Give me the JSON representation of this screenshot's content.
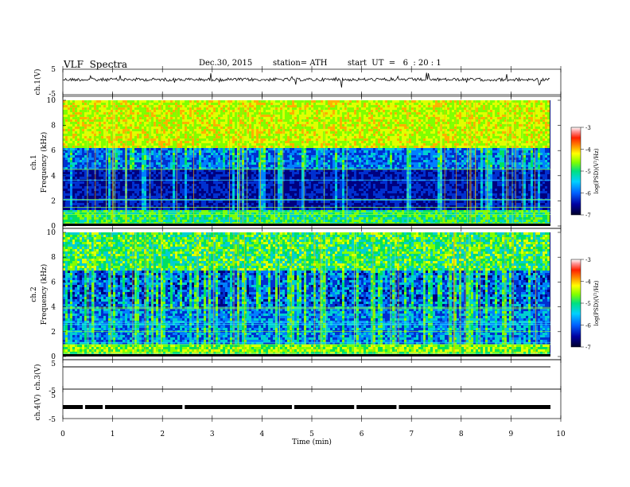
{
  "header": {
    "title": "VLF  Spectra",
    "date": "Dec.30, 2015",
    "station": "station= ATH",
    "start": "start  UT  =   6  : 20 : 1"
  },
  "colors": {
    "colormap": [
      "#00002a",
      "#000080",
      "#0030d0",
      "#0080ff",
      "#00d0d0",
      "#00e060",
      "#80ff00",
      "#e0ff00",
      "#ffb000",
      "#ff3000",
      "#ff8080",
      "#ffffff"
    ],
    "trace": "#000000"
  },
  "chart_data": [
    {
      "type": "line",
      "panel": "ch1-waveform",
      "ylabel": "ch.1(V)",
      "ylim": [
        -5,
        5
      ],
      "yticks": [
        "5",
        "-5"
      ],
      "x_range_min": [
        0,
        9.8
      ],
      "description_values": "continuous noisy waveform near 0.8 V baseline with sporadic spikes"
    },
    {
      "type": "heatmap",
      "panel": "ch1-spectrogram",
      "ylabel": "ch.1\nFrequency (kHz)",
      "ylabel_line1": "ch.1",
      "ylabel_line2": "Frequency  (kHz)",
      "ylim": [
        0,
        10
      ],
      "yticks": [
        "10",
        "8",
        "6",
        "4",
        "2",
        "0"
      ],
      "colorbar": {
        "label": "log(PSD)(V²/Hz)",
        "range": [
          -7,
          -3
        ],
        "ticks": [
          "-3",
          "-4",
          "-5",
          "-6",
          "-7"
        ]
      }
    },
    {
      "type": "heatmap",
      "panel": "ch2-spectrogram",
      "ylabel_line1": "ch.2",
      "ylabel_line2": "Frequency  (kHz)",
      "ylim": [
        0,
        10
      ],
      "yticks": [
        "10",
        "8",
        "6",
        "4",
        "2",
        "0"
      ],
      "colorbar": {
        "label": "log(PSD)(V²/Hz)",
        "range": [
          -7,
          -3
        ],
        "ticks": [
          "-3",
          "-4",
          "-5",
          "-6",
          "-7"
        ]
      }
    },
    {
      "type": "line",
      "panel": "ch3-waveform",
      "ylabel": "ch.3(V)",
      "ylim": [
        -5,
        5
      ],
      "yticks": [
        "5",
        "-5"
      ],
      "values_note": "flat trace near 0 V"
    },
    {
      "type": "line",
      "panel": "ch4-waveform",
      "ylabel": "ch.4(V)",
      "ylim": [
        -5,
        5
      ],
      "yticks": [
        "5",
        "-5"
      ],
      "gaps_min": [
        0.4,
        0.8,
        2.4,
        4.6,
        5.85,
        6.7
      ]
    }
  ],
  "xaxis": {
    "label": "Time  (min)",
    "ticks": [
      "0",
      "1",
      "2",
      "3",
      "4",
      "5",
      "6",
      "7",
      "8",
      "9",
      "10"
    ],
    "xlim": [
      0,
      10
    ]
  }
}
